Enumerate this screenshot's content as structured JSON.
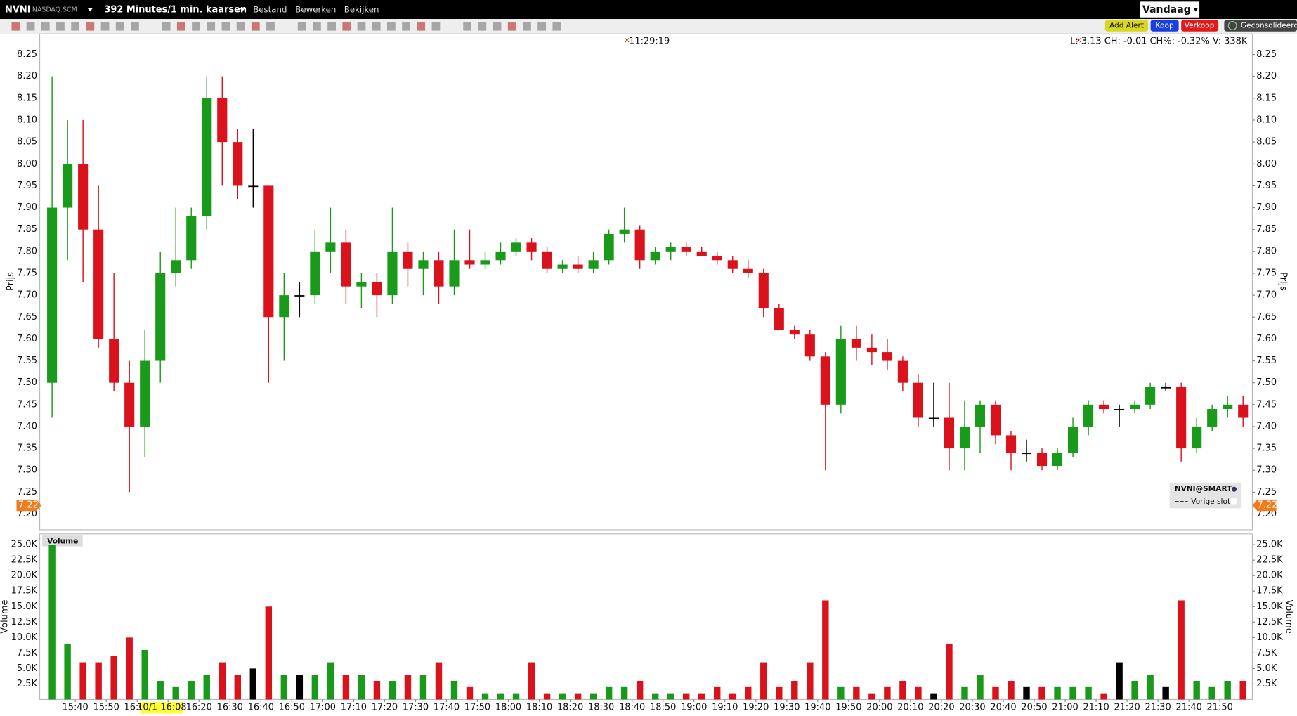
{
  "header": {
    "symbol": "NVNI",
    "exchange": "NASDAQ.SCM",
    "period": "392 Minutes/1 min. kaarsen",
    "menu": [
      "Bestand",
      "Bewerken",
      "Bekijken"
    ],
    "range": "Vandaag",
    "buttons": [
      "Add Alert",
      "Koop",
      "Verkoop",
      "Geconsolideerd"
    ]
  },
  "chart_data": {
    "type": "candlestick",
    "time": "11:29:19",
    "quote": "L: 3.13 CH: -0.01  CH%: -0.32% V: 338K",
    "y_label": "Prijs",
    "volume_title": "Volume",
    "volume_label": "Volume",
    "legend": {
      "symbol": "NVNI@SMART",
      "line": "Vorige slot"
    },
    "previous_close": 7.22,
    "crosshair_label": "10/1 16:08",
    "crosshair_x": 38,
    "up_color": "#1a9a1a",
    "down_color": "#d9121b",
    "flat_color": "#000000",
    "x": [
      0,
      5,
      10,
      15,
      20,
      25,
      30,
      35,
      40,
      45,
      50,
      55,
      60,
      65,
      70,
      75,
      80,
      85,
      90,
      95,
      100,
      105,
      110,
      115,
      120,
      125,
      130,
      135,
      140,
      145,
      150,
      155,
      160,
      165,
      170,
      175,
      180,
      185,
      190,
      195,
      200,
      205,
      210,
      215,
      220,
      225,
      230,
      235,
      240,
      245,
      250,
      255,
      260,
      265,
      270,
      275,
      280,
      285,
      290,
      295,
      300,
      305,
      310,
      315,
      320,
      325,
      330,
      335,
      340,
      345,
      350,
      355,
      360,
      365,
      370,
      375,
      380,
      385
    ],
    "open": [
      7.5,
      7.9,
      8.0,
      7.85,
      7.6,
      7.5,
      7.4,
      7.55,
      7.75,
      7.78,
      7.88,
      8.15,
      8.05,
      7.95,
      7.95,
      7.65,
      7.7,
      7.7,
      7.8,
      7.82,
      7.72,
      7.73,
      7.7,
      7.8,
      7.76,
      7.78,
      7.72,
      7.78,
      7.77,
      7.78,
      7.8,
      7.82,
      7.8,
      7.76,
      7.77,
      7.76,
      7.78,
      7.84,
      7.85,
      7.78,
      7.8,
      7.81,
      7.8,
      7.79,
      7.78,
      7.76,
      7.75,
      7.67,
      7.62,
      7.61,
      7.56,
      7.45,
      7.6,
      7.58,
      7.57,
      7.55,
      7.5,
      7.42,
      7.42,
      7.35,
      7.4,
      7.45,
      7.38,
      7.34,
      7.34,
      7.31,
      7.34,
      7.4,
      7.45,
      7.44,
      7.44,
      7.45,
      7.49,
      7.49,
      7.35,
      7.4,
      7.44,
      7.45
    ],
    "high": [
      8.2,
      8.1,
      8.1,
      7.95,
      7.75,
      7.55,
      7.62,
      7.8,
      7.9,
      7.9,
      8.2,
      8.2,
      8.08,
      8.08,
      7.95,
      7.75,
      7.73,
      7.85,
      7.9,
      7.85,
      7.75,
      7.75,
      7.9,
      7.82,
      7.8,
      7.8,
      7.85,
      7.85,
      7.8,
      7.82,
      7.83,
      7.83,
      7.81,
      7.78,
      7.79,
      7.8,
      7.85,
      7.9,
      7.86,
      7.81,
      7.82,
      7.82,
      7.81,
      7.8,
      7.79,
      7.78,
      7.76,
      7.68,
      7.63,
      7.62,
      7.57,
      7.63,
      7.63,
      7.61,
      7.6,
      7.56,
      7.52,
      7.5,
      7.5,
      7.46,
      7.46,
      7.46,
      7.39,
      7.37,
      7.35,
      7.35,
      7.42,
      7.46,
      7.46,
      7.45,
      7.46,
      7.5,
      7.5,
      7.5,
      7.42,
      7.45,
      7.47,
      7.47
    ],
    "low": [
      7.42,
      7.78,
      7.73,
      7.58,
      7.48,
      7.25,
      7.33,
      7.5,
      7.72,
      7.76,
      7.85,
      7.95,
      7.92,
      7.9,
      7.5,
      7.55,
      7.65,
      7.68,
      7.75,
      7.68,
      7.67,
      7.65,
      7.68,
      7.72,
      7.7,
      7.68,
      7.7,
      7.76,
      7.76,
      7.77,
      7.79,
      7.78,
      7.75,
      7.75,
      7.75,
      7.75,
      7.77,
      7.82,
      7.76,
      7.77,
      7.78,
      7.79,
      7.79,
      7.77,
      7.75,
      7.74,
      7.65,
      7.62,
      7.6,
      7.55,
      7.3,
      7.43,
      7.55,
      7.54,
      7.53,
      7.48,
      7.4,
      7.4,
      7.3,
      7.3,
      7.34,
      7.36,
      7.3,
      7.32,
      7.3,
      7.3,
      7.33,
      7.38,
      7.43,
      7.4,
      7.43,
      7.44,
      7.48,
      7.32,
      7.34,
      7.39,
      7.42,
      7.4
    ],
    "close": [
      7.9,
      8.0,
      7.85,
      7.6,
      7.5,
      7.4,
      7.55,
      7.75,
      7.78,
      7.88,
      8.15,
      8.05,
      7.95,
      7.95,
      7.65,
      7.7,
      7.7,
      7.8,
      7.82,
      7.72,
      7.73,
      7.7,
      7.8,
      7.76,
      7.78,
      7.72,
      7.78,
      7.77,
      7.78,
      7.8,
      7.82,
      7.8,
      7.76,
      7.77,
      7.76,
      7.78,
      7.84,
      7.85,
      7.78,
      7.8,
      7.81,
      7.8,
      7.79,
      7.78,
      7.76,
      7.75,
      7.67,
      7.62,
      7.61,
      7.56,
      7.45,
      7.6,
      7.58,
      7.57,
      7.55,
      7.5,
      7.42,
      7.42,
      7.35,
      7.4,
      7.45,
      7.38,
      7.34,
      7.34,
      7.31,
      7.34,
      7.4,
      7.45,
      7.44,
      7.44,
      7.45,
      7.49,
      7.49,
      7.35,
      7.4,
      7.44,
      7.45,
      7.42
    ],
    "volume": [
      25000,
      9000,
      6000,
      6000,
      7000,
      10000,
      8000,
      3000,
      2000,
      3000,
      4000,
      6000,
      4000,
      5000,
      15000,
      4000,
      4000,
      4000,
      6000,
      4000,
      4000,
      3000,
      3000,
      4000,
      4000,
      6000,
      3000,
      2000,
      1000,
      1000,
      1000,
      6000,
      1000,
      1000,
      1000,
      1000,
      2000,
      2000,
      3000,
      1000,
      1000,
      1000,
      1000,
      2000,
      1000,
      2000,
      6000,
      2000,
      3000,
      6000,
      16000,
      2000,
      2000,
      1000,
      2000,
      3000,
      2000,
      1000,
      9000,
      2000,
      4000,
      2000,
      3000,
      2000,
      2000,
      2000,
      2000,
      2000,
      1000,
      6000,
      3000,
      4000,
      2000,
      16000,
      3000,
      2000,
      3000,
      3000
    ],
    "xlim": [
      -1.5,
      390.5
    ],
    "xticks": [
      {
        "value": 10,
        "label": "15:40"
      },
      {
        "value": 20,
        "label": "15:50"
      },
      {
        "value": 30,
        "label": "16:00"
      },
      {
        "value": 40,
        "label": "16:10"
      },
      {
        "value": 50,
        "label": "16:20"
      },
      {
        "value": 60,
        "label": "16:30"
      },
      {
        "value": 70,
        "label": "16:40"
      },
      {
        "value": 80,
        "label": "16:50"
      },
      {
        "value": 90,
        "label": "17:00"
      },
      {
        "value": 100,
        "label": "17:10"
      },
      {
        "value": 110,
        "label": "17:20"
      },
      {
        "value": 120,
        "label": "17:30"
      },
      {
        "value": 130,
        "label": "17:40"
      },
      {
        "value": 140,
        "label": "17:50"
      },
      {
        "value": 150,
        "label": "18:00"
      },
      {
        "value": 160,
        "label": "18:10"
      },
      {
        "value": 170,
        "label": "18:20"
      },
      {
        "value": 180,
        "label": "18:30"
      },
      {
        "value": 190,
        "label": "18:40"
      },
      {
        "value": 200,
        "label": "18:50"
      },
      {
        "value": 210,
        "label": "19:00"
      },
      {
        "value": 220,
        "label": "19:10"
      },
      {
        "value": 230,
        "label": "19:20"
      },
      {
        "value": 240,
        "label": "19:30"
      },
      {
        "value": 250,
        "label": "19:40"
      },
      {
        "value": 260,
        "label": "19:50"
      },
      {
        "value": 270,
        "label": "20:00"
      },
      {
        "value": 280,
        "label": "20:10"
      },
      {
        "value": 290,
        "label": "20:20"
      },
      {
        "value": 300,
        "label": "20:30"
      },
      {
        "value": 310,
        "label": "20:40"
      },
      {
        "value": 320,
        "label": "20:50"
      },
      {
        "value": 330,
        "label": "21:00"
      },
      {
        "value": 340,
        "label": "21:10"
      },
      {
        "value": 350,
        "label": "21:20"
      },
      {
        "value": 360,
        "label": "21:30"
      },
      {
        "value": 370,
        "label": "21:40"
      },
      {
        "value": 380,
        "label": "21:50"
      }
    ],
    "ylim": [
      7.164,
      8.297
    ],
    "yticks": [
      {
        "value": 7.2,
        "label": "7.20"
      },
      {
        "value": 7.25,
        "label": "7.25"
      },
      {
        "value": 7.3,
        "label": "7.30"
      },
      {
        "value": 7.35,
        "label": "7.35"
      },
      {
        "value": 7.4,
        "label": "7.40"
      },
      {
        "value": 7.45,
        "label": "7.45"
      },
      {
        "value": 7.5,
        "label": "7.50"
      },
      {
        "value": 7.55,
        "label": "7.55"
      },
      {
        "value": 7.6,
        "label": "7.60"
      },
      {
        "value": 7.65,
        "label": "7.65"
      },
      {
        "value": 7.7,
        "label": "7.70"
      },
      {
        "value": 7.75,
        "label": "7.75"
      },
      {
        "value": 7.8,
        "label": "7.80"
      },
      {
        "value": 7.85,
        "label": "7.85"
      },
      {
        "value": 7.9,
        "label": "7.90"
      },
      {
        "value": 7.95,
        "label": "7.95"
      },
      {
        "value": 8.0,
        "label": "8.00"
      },
      {
        "value": 8.05,
        "label": "8.05"
      },
      {
        "value": 8.1,
        "label": "8.10"
      },
      {
        "value": 8.15,
        "label": "8.15"
      },
      {
        "value": 8.2,
        "label": "8.20"
      },
      {
        "value": 8.25,
        "label": "8.25"
      }
    ],
    "volume_ylim": [
      0,
      26740
    ],
    "volume_yticks": [
      {
        "value": 2500,
        "label": "2.5K"
      },
      {
        "value": 5000,
        "label": "5.0K"
      },
      {
        "value": 7500,
        "label": "7.5K"
      },
      {
        "value": 10000,
        "label": "10.0K"
      },
      {
        "value": 12500,
        "label": "12.5K"
      },
      {
        "value": 15000,
        "label": "15.0K"
      },
      {
        "value": 17500,
        "label": "17.5K"
      },
      {
        "value": 20000,
        "label": "20.0K"
      },
      {
        "value": 22500,
        "label": "22.5K"
      },
      {
        "value": 25000,
        "label": "25.0K"
      }
    ]
  }
}
